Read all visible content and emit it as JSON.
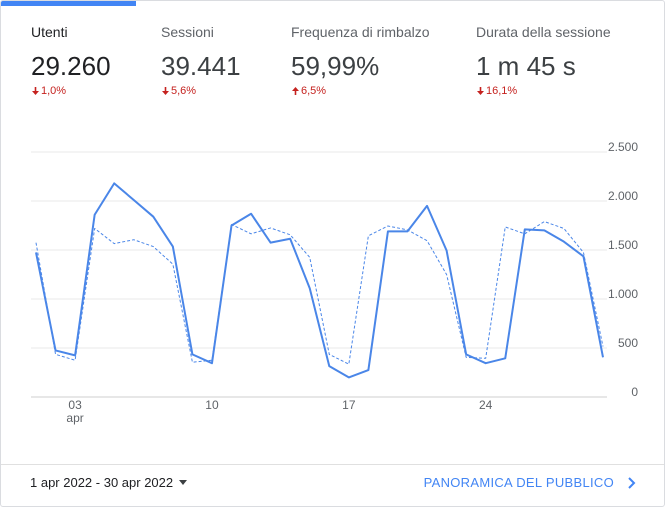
{
  "metrics": [
    {
      "label": "Utenti",
      "value": "29.260",
      "change": "1,0%",
      "direction": "down"
    },
    {
      "label": "Sessioni",
      "value": "39.441",
      "change": "5,6%",
      "direction": "down"
    },
    {
      "label": "Frequenza di rimbalzo",
      "value": "59,99%",
      "change": "6,5%",
      "direction": "up"
    },
    {
      "label": "Durata della sessione",
      "value": "1 m 45 s",
      "change": "16,1%",
      "direction": "down"
    }
  ],
  "chart_data": {
    "type": "line",
    "categories": [
      null,
      null,
      "03",
      null,
      null,
      null,
      null,
      null,
      null,
      "10",
      null,
      null,
      null,
      null,
      null,
      null,
      "17",
      null,
      null,
      null,
      null,
      null,
      null,
      "24",
      null,
      null,
      null,
      null,
      null,
      null
    ],
    "month_label": "apr",
    "series": [
      {
        "color": "#4a86e8",
        "dash": false,
        "values": [
          1475,
          475,
          425,
          1860,
          2180,
          2010,
          1840,
          1535,
          435,
          345,
          1750,
          1870,
          1575,
          1615,
          1110,
          315,
          200,
          275,
          1690,
          1690,
          1950,
          1495,
          435,
          345,
          395,
          1710,
          1700,
          1585,
          1435,
          405
        ]
      },
      {
        "color": "#4a86e8",
        "dash": true,
        "values": [
          1575,
          435,
          375,
          1720,
          1565,
          1605,
          1535,
          1355,
          355,
          375,
          1760,
          1665,
          1725,
          1655,
          1425,
          435,
          335,
          1645,
          1745,
          1705,
          1595,
          1250,
          405,
          395,
          1735,
          1665,
          1790,
          1720,
          1475,
          515
        ]
      }
    ],
    "ylim": [
      0,
      2500
    ],
    "yticks": [
      0,
      500,
      {
        "value": 1000,
        "label": "1.000"
      },
      {
        "value": 1500,
        "label": "1.500"
      },
      {
        "value": 2000,
        "label": "2.000"
      },
      {
        "value": 2500,
        "label": "2.500"
      }
    ],
    "grid": true
  },
  "footer": {
    "date_range": "1 apr 2022 - 30 apr 2022",
    "link": "PANORAMICA DEL PUBBLICO"
  }
}
